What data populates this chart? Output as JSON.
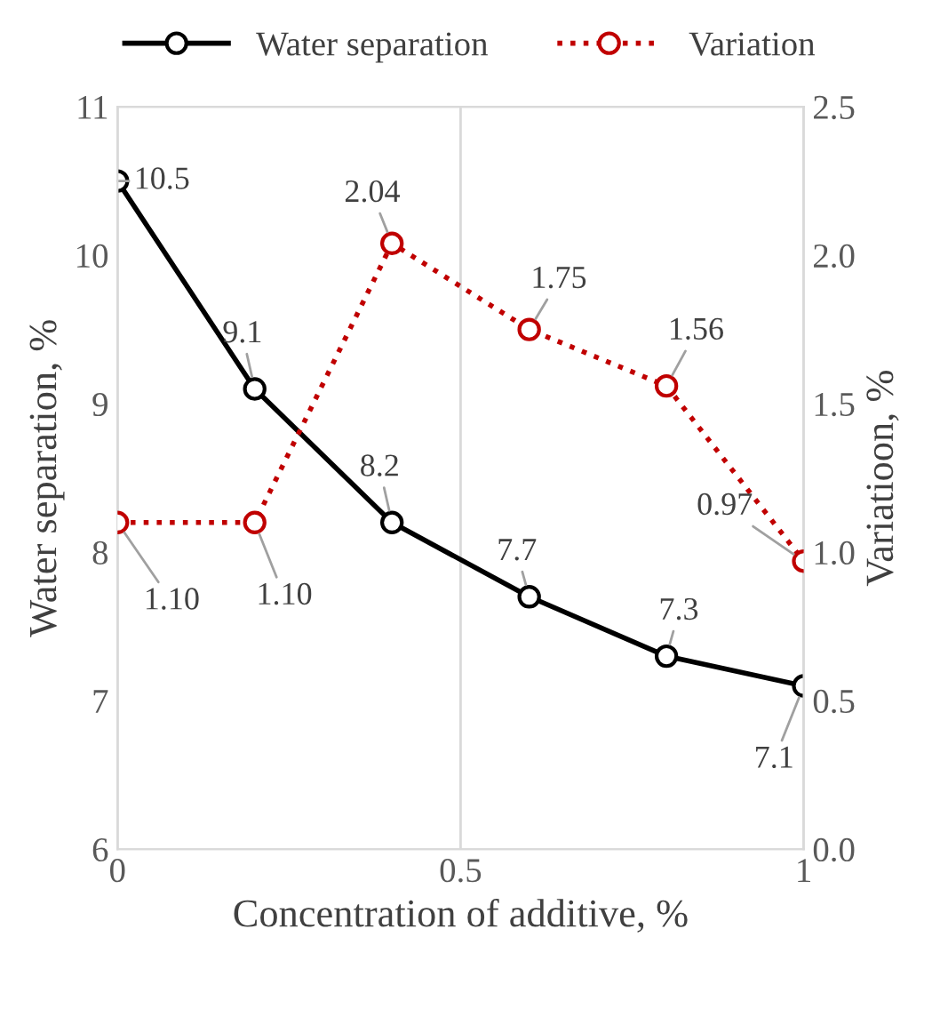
{
  "chart_data": {
    "type": "line",
    "xlabel": "Concentration of additive, %",
    "ylabel": "Water separation, %",
    "y2label": "Variatioon, %",
    "x": [
      0,
      0.2,
      0.4,
      0.6,
      0.8,
      1
    ],
    "series": [
      {
        "name": "Water separation",
        "color": "#000000",
        "values": [
          10.5,
          9.1,
          8.2,
          7.7,
          7.3,
          7.1
        ],
        "line_style": "solid",
        "value_labels": [
          "10.5",
          "9.1",
          "8.2",
          "7.7",
          "7.3",
          "7.1"
        ]
      },
      {
        "name": "Variation",
        "color": "#c00000",
        "values": [
          1.1,
          1.1,
          2.04,
          1.75,
          1.56,
          0.97
        ],
        "line_style": "dotted",
        "axis": "y2",
        "value_labels": [
          "1.10",
          "1.10",
          "2.04",
          "1.75",
          "1.56",
          "0.97"
        ]
      }
    ],
    "marker": "circle",
    "xlim": [
      0,
      1
    ],
    "xticks": [
      0,
      0.5,
      1
    ],
    "ylim": [
      6,
      11
    ],
    "yticks": [
      6,
      7,
      8,
      9,
      10,
      11
    ],
    "y2lim": [
      0,
      2.5
    ],
    "y2ticks": [
      {
        "value": 0,
        "label": "0.0"
      },
      {
        "value": 0.5,
        "label": "0.5"
      },
      {
        "value": 1,
        "label": "1.0"
      },
      {
        "value": 1.5,
        "label": "1.5"
      },
      {
        "value": 2,
        "label": "2.0"
      },
      {
        "value": 2.5,
        "label": "2.5"
      }
    ],
    "grid": "x",
    "legend": "top"
  }
}
